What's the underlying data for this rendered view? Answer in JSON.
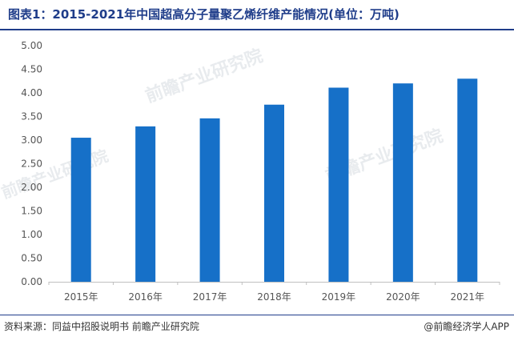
{
  "header": {
    "title": "图表1：2015-2021年中国超高分子量聚乙烯纤维产能情况(单位：万吨)"
  },
  "footer": {
    "source": "资料来源：同益中招股说明书 前瞻产业研究院",
    "credit": "@前瞻经济学人APP"
  },
  "watermark": {
    "text": "前瞻产业研究院"
  },
  "chart_data": {
    "type": "bar",
    "title": "图表1：2015-2021年中国超高分子量聚乙烯纤维产能情况(单位：万吨)",
    "categories": [
      "2015年",
      "2016年",
      "2017年",
      "2018年",
      "2019年",
      "2020年",
      "2021年"
    ],
    "values": [
      3.05,
      3.29,
      3.46,
      3.75,
      4.11,
      4.2,
      4.3
    ],
    "ylim": [
      0,
      5
    ],
    "yticks": [
      "0.00",
      "0.50",
      "1.00",
      "1.50",
      "2.00",
      "2.50",
      "3.00",
      "3.50",
      "4.00",
      "4.50",
      "5.00"
    ],
    "bar_color": "#1670c8",
    "grid": false
  }
}
